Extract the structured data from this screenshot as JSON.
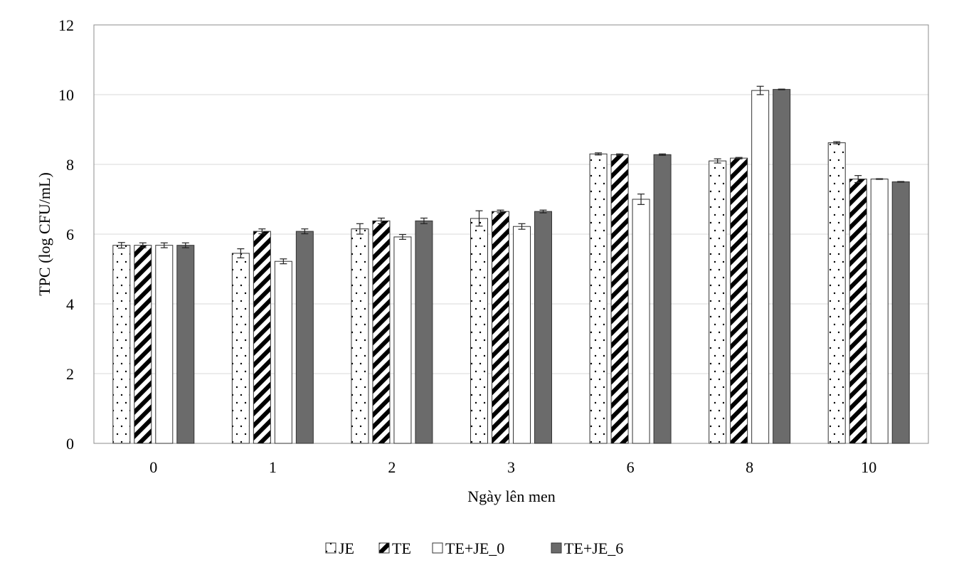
{
  "chart_data": {
    "type": "bar",
    "title": "",
    "xlabel": "Ngày lên men",
    "ylabel": "TPC (log CFU/mL)",
    "ylim": [
      0,
      12
    ],
    "yticks": [
      "0",
      "2",
      "4",
      "6",
      "8",
      "10",
      "12"
    ],
    "grid": true,
    "legend_position": "bottom",
    "categories": [
      "0",
      "1",
      "2",
      "3",
      "6",
      "8",
      "10"
    ],
    "series": [
      {
        "name": "JE",
        "pattern": "dots",
        "values": [
          5.68,
          5.45,
          6.15,
          6.45,
          8.3,
          8.1,
          8.62
        ],
        "errors": [
          0.08,
          0.13,
          0.15,
          0.22,
          0.03,
          0.06,
          0.03
        ]
      },
      {
        "name": "TE",
        "pattern": "diagonal-stripes",
        "values": [
          5.68,
          6.08,
          6.38,
          6.65,
          8.28,
          8.18,
          7.58
        ],
        "errors": [
          0.07,
          0.07,
          0.08,
          0.04,
          0.02,
          0.02,
          0.1
        ]
      },
      {
        "name": "TE+JE_0",
        "pattern": "white",
        "values": [
          5.68,
          5.22,
          5.92,
          6.22,
          7.0,
          10.12,
          7.58
        ],
        "errors": [
          0.07,
          0.07,
          0.07,
          0.08,
          0.15,
          0.12,
          0.01
        ]
      },
      {
        "name": "TE+JE_6",
        "pattern": "solid-gray",
        "values": [
          5.68,
          6.08,
          6.38,
          6.65,
          8.28,
          10.15,
          7.5
        ],
        "errors": [
          0.07,
          0.07,
          0.08,
          0.04,
          0.02,
          0.01,
          0.01
        ]
      }
    ],
    "colors": {
      "fill_gray": "#6b6b6b",
      "stroke": "#333333",
      "grid": "#d9d9d9",
      "axis": "#8c8c8c"
    }
  }
}
